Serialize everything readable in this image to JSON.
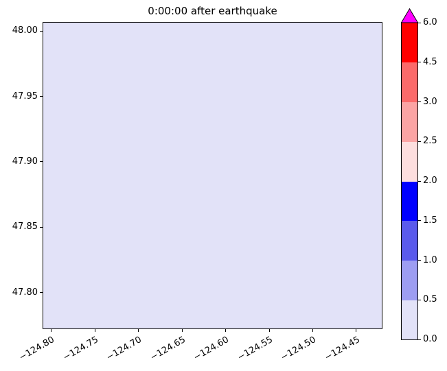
{
  "chart_data": {
    "type": "heatmap",
    "title": "0:00:00 after earthquake",
    "xlabel": "",
    "ylabel": "",
    "xlim": [
      -124.81,
      -124.42
    ],
    "ylim": [
      47.772,
      48.007
    ],
    "x_ticks": [
      -124.8,
      -124.75,
      -124.7,
      -124.65,
      -124.6,
      -124.55,
      -124.5,
      -124.45
    ],
    "x_tick_labels": [
      "−124.80",
      "−124.75",
      "−124.70",
      "−124.65",
      "−124.60",
      "−124.55",
      "−124.50",
      "−124.45"
    ],
    "y_ticks": [
      48.0,
      47.95,
      47.9,
      47.85,
      47.8
    ],
    "y_tick_labels": [
      "48.00",
      "47.95",
      "47.90",
      "47.85",
      "47.80"
    ],
    "field_uniform_value": 0.0,
    "field_fill_color": "#e2e2f8",
    "grid": false,
    "colorbar": {
      "boundaries": [
        0.0,
        0.5,
        1.0,
        1.5,
        2.0,
        2.5,
        3.0,
        4.5,
        6.0
      ],
      "tick_labels": [
        "0.0",
        "0.5",
        "1.0",
        "1.5",
        "2.0",
        "2.5",
        "3.0",
        "4.5",
        "6.0"
      ],
      "colors": [
        "#e2e2f8",
        "#9d9df2",
        "#5a5aec",
        "#0000ff",
        "#fddede",
        "#fba4a4",
        "#fb6a6a",
        "#ff0000"
      ],
      "over_color": "#ff00ff",
      "spacing": "uniform",
      "position": "right"
    }
  }
}
